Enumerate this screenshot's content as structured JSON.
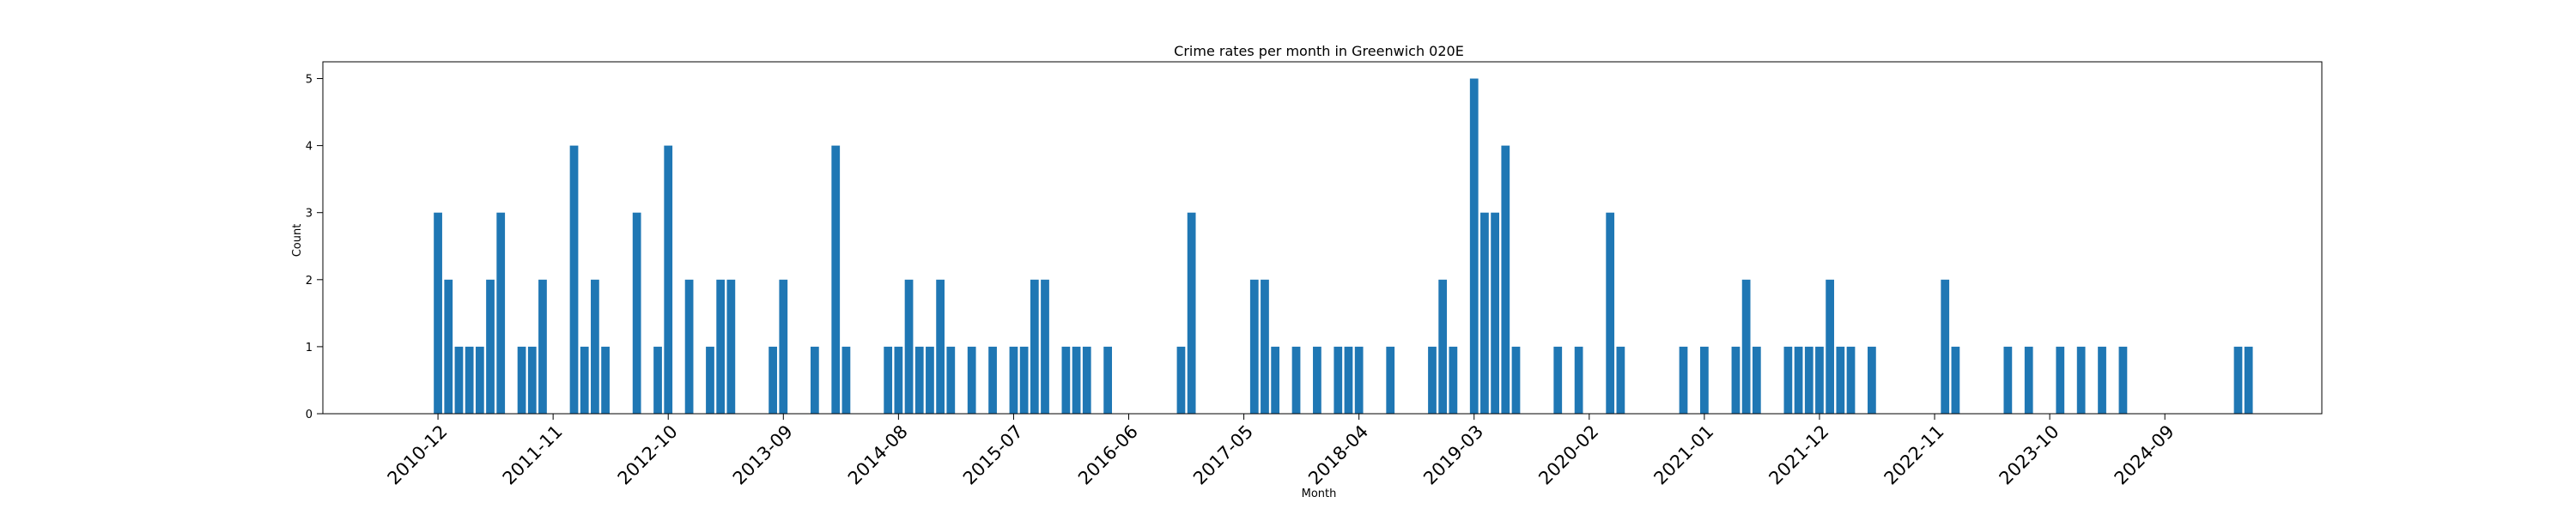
{
  "chart_data": {
    "type": "bar",
    "title": "Crime rates per month in Greenwich 020E",
    "xlabel": "Month",
    "ylabel": "Count",
    "ylim": [
      0,
      5.25
    ],
    "xlim": [
      "2010-01",
      "2025-12"
    ],
    "yticks": [
      0,
      1,
      2,
      3,
      4,
      5
    ],
    "xticks": [
      "2010-12",
      "2011-11",
      "2012-10",
      "2013-09",
      "2014-08",
      "2015-07",
      "2016-06",
      "2017-05",
      "2018-04",
      "2019-03",
      "2020-02",
      "2021-01",
      "2021-12",
      "2022-11",
      "2023-10",
      "2024-09"
    ],
    "grid": false,
    "legend": "none",
    "bar_color": "#1f77b4",
    "categories": [
      "2010-12",
      "2011-01",
      "2011-02",
      "2011-03",
      "2011-04",
      "2011-05",
      "2011-06",
      "2011-08",
      "2011-09",
      "2011-10",
      "2012-01",
      "2012-02",
      "2012-03",
      "2012-04",
      "2012-07",
      "2012-09",
      "2012-10",
      "2012-12",
      "2013-02",
      "2013-03",
      "2013-04",
      "2013-08",
      "2013-09",
      "2013-12",
      "2014-02",
      "2014-03",
      "2014-07",
      "2014-08",
      "2014-09",
      "2014-10",
      "2014-11",
      "2014-12",
      "2015-01",
      "2015-03",
      "2015-05",
      "2015-07",
      "2015-08",
      "2015-09",
      "2015-10",
      "2015-12",
      "2016-01",
      "2016-02",
      "2016-04",
      "2016-11",
      "2016-12",
      "2017-06",
      "2017-07",
      "2017-08",
      "2017-10",
      "2017-12",
      "2018-02",
      "2018-03",
      "2018-04",
      "2018-07",
      "2018-11",
      "2018-12",
      "2019-01",
      "2019-03",
      "2019-04",
      "2019-05",
      "2019-06",
      "2019-07",
      "2019-11",
      "2020-01",
      "2020-04",
      "2020-05",
      "2020-11",
      "2021-01",
      "2021-04",
      "2021-05",
      "2021-06",
      "2021-09",
      "2021-10",
      "2021-11",
      "2021-12",
      "2022-01",
      "2022-02",
      "2022-03",
      "2022-05",
      "2022-12",
      "2023-01",
      "2023-06",
      "2023-08",
      "2023-11",
      "2024-01",
      "2024-03",
      "2024-05",
      "2025-04",
      "2025-05"
    ],
    "values": [
      3,
      2,
      1,
      1,
      1,
      2,
      3,
      1,
      1,
      2,
      4,
      1,
      2,
      1,
      3,
      1,
      4,
      2,
      1,
      2,
      2,
      1,
      2,
      1,
      4,
      1,
      1,
      1,
      2,
      1,
      1,
      2,
      1,
      1,
      1,
      1,
      1,
      2,
      2,
      1,
      1,
      1,
      1,
      1,
      3,
      2,
      2,
      1,
      1,
      1,
      1,
      1,
      1,
      1,
      1,
      2,
      1,
      5,
      3,
      3,
      4,
      1,
      1,
      1,
      3,
      1,
      1,
      1,
      1,
      2,
      1,
      1,
      1,
      1,
      1,
      2,
      1,
      1,
      1,
      2,
      1,
      1,
      1,
      1,
      1,
      1,
      1,
      1,
      1
    ]
  }
}
